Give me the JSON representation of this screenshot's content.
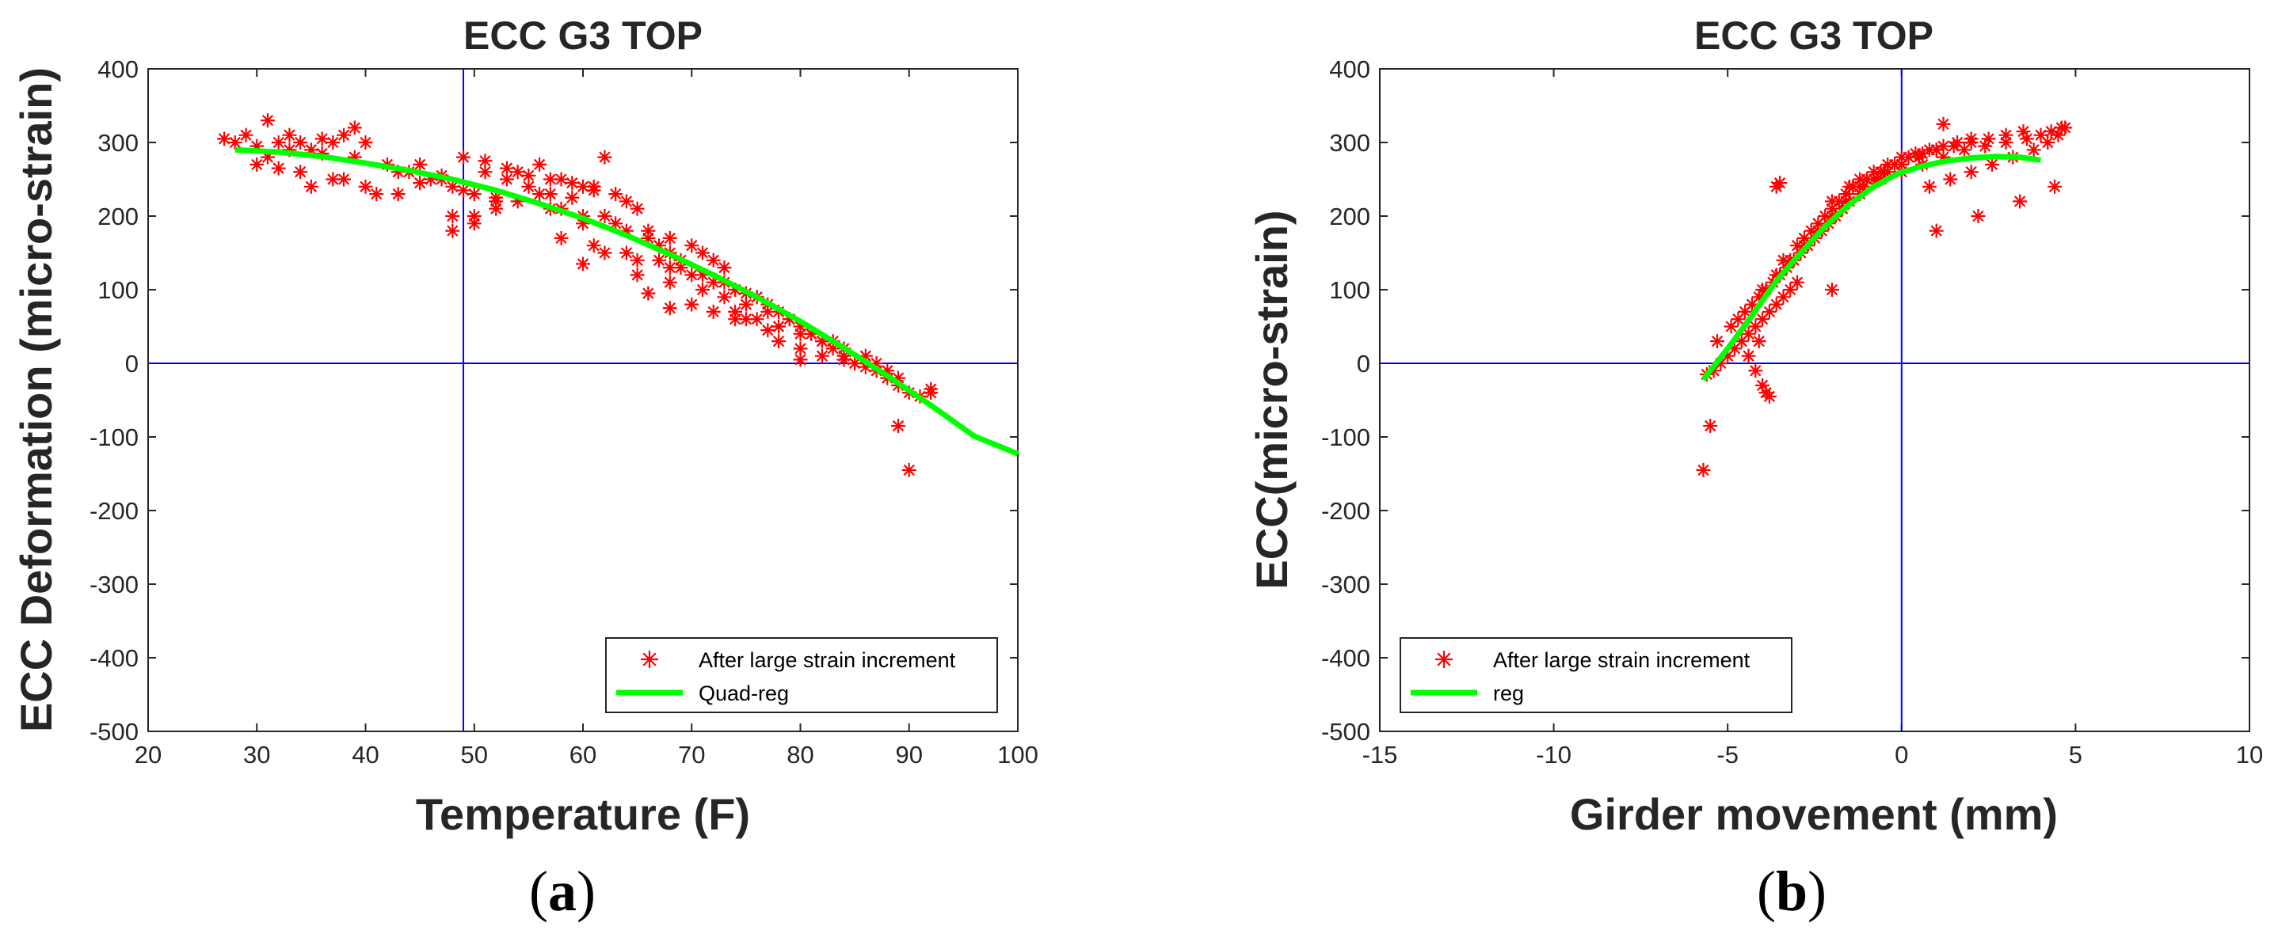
{
  "chart_data": [
    {
      "type": "scatter",
      "title": "ECC G3 TOP",
      "xlabel": "Temperature (F)",
      "ylabel": "ECC Deformation (micro-strain)",
      "xlim": [
        20,
        100
      ],
      "ylim": [
        -500,
        400
      ],
      "xticks": [
        "20",
        "30",
        "40",
        "50",
        "60",
        "70",
        "80",
        "90",
        "100"
      ],
      "yticks": [
        "-500",
        "-400",
        "-300",
        "-200",
        "-100",
        "0",
        "100",
        "200",
        "300",
        "400"
      ],
      "reference_lines": {
        "x": 49,
        "y": 0
      },
      "legend_position": "bottom-right",
      "series": [
        {
          "name": "After large strain increment",
          "marker": "asterisk",
          "color": "#ff0000",
          "x": [
            27,
            28,
            29,
            30,
            31,
            31,
            32,
            33,
            34,
            35,
            36,
            37,
            38,
            39,
            40,
            30,
            32,
            35,
            38,
            41,
            43,
            45,
            47,
            33,
            36,
            39,
            42,
            44,
            46,
            48,
            50,
            52,
            34,
            37,
            40,
            43,
            45,
            47,
            49,
            51,
            53,
            55,
            57,
            59,
            48,
            50,
            52,
            54,
            56,
            58,
            60,
            61,
            62,
            49,
            51,
            53,
            55,
            57,
            59,
            61,
            63,
            64,
            65,
            48,
            50,
            52,
            56,
            58,
            60,
            62,
            64,
            66,
            67,
            68,
            69,
            54,
            57,
            60,
            63,
            66,
            68,
            70,
            71,
            72,
            73,
            58,
            61,
            64,
            67,
            69,
            71,
            73,
            74,
            75,
            76,
            62,
            65,
            68,
            70,
            72,
            74,
            76,
            77,
            78,
            79,
            65,
            68,
            71,
            73,
            75,
            77,
            79,
            80,
            81,
            82,
            70,
            74,
            76,
            78,
            80,
            82,
            83,
            84,
            85,
            72,
            75,
            78,
            81,
            83,
            84,
            86,
            87,
            88,
            89,
            78,
            80,
            82,
            85,
            87,
            88,
            89,
            90,
            91,
            92,
            89,
            90,
            92,
            60,
            66,
            68,
            74,
            77,
            80,
            84,
            86
          ],
          "y": [
            305,
            300,
            310,
            295,
            330,
            280,
            300,
            310,
            300,
            290,
            305,
            300,
            310,
            320,
            300,
            270,
            265,
            240,
            250,
            230,
            260,
            270,
            250,
            290,
            285,
            280,
            270,
            260,
            250,
            240,
            230,
            225,
            260,
            250,
            240,
            230,
            245,
            255,
            235,
            260,
            250,
            240,
            230,
            225,
            200,
            190,
            210,
            260,
            270,
            250,
            240,
            235,
            280,
            280,
            275,
            265,
            255,
            250,
            245,
            240,
            230,
            220,
            210,
            180,
            200,
            220,
            230,
            210,
            190,
            200,
            180,
            170,
            160,
            150,
            140,
            220,
            210,
            200,
            190,
            180,
            170,
            160,
            150,
            140,
            130,
            170,
            160,
            150,
            140,
            130,
            120,
            110,
            100,
            95,
            90,
            150,
            140,
            130,
            120,
            110,
            100,
            90,
            80,
            70,
            60,
            120,
            110,
            100,
            90,
            80,
            70,
            60,
            50,
            40,
            30,
            80,
            70,
            60,
            50,
            40,
            30,
            20,
            10,
            0,
            70,
            60,
            50,
            40,
            30,
            20,
            10,
            0,
            -10,
            -20,
            30,
            20,
            10,
            0,
            -10,
            -20,
            -30,
            -40,
            -45,
            -35,
            -85,
            -145,
            -40,
            135,
            95,
            75,
            60,
            45,
            5,
            5,
            -5
          ]
        },
        {
          "name": "Quad-reg",
          "type": "line",
          "color": "#00ff00",
          "x": [
            28,
            32,
            36,
            40,
            44,
            48,
            52,
            56,
            60,
            64,
            68,
            72,
            76,
            80,
            84,
            88,
            92,
            96,
            100
          ],
          "y": [
            290,
            287,
            281,
            272,
            262,
            250,
            235,
            217,
            197,
            174,
            148,
            120,
            90,
            57,
            21,
            -17,
            -57,
            -99,
            -123
          ]
        }
      ]
    },
    {
      "type": "scatter",
      "title": "ECC G3 TOP",
      "xlabel": "Girder movement (mm)",
      "ylabel": "ECC(micro-strain)",
      "xlim": [
        -15,
        10
      ],
      "ylim": [
        -500,
        400
      ],
      "xticks": [
        "-15",
        "-10",
        "-5",
        "0",
        "5",
        "10"
      ],
      "yticks": [
        "-500",
        "-400",
        "-300",
        "-200",
        "-100",
        "0",
        "100",
        "200",
        "300",
        "400"
      ],
      "reference_lines": {
        "x": 0,
        "y": 0
      },
      "legend_position": "bottom-left",
      "series": [
        {
          "name": "After large strain increment",
          "marker": "asterisk",
          "color": "#ff0000",
          "x": [
            -5.6,
            -5.4,
            -5.2,
            -5.0,
            -4.8,
            -4.6,
            -4.4,
            -4.2,
            -4.0,
            -3.8,
            -3.6,
            -3.4,
            -3.2,
            -3.0,
            -5.3,
            -4.9,
            -4.5,
            -4.1,
            -3.7,
            -3.3,
            -2.9,
            -2.5,
            -2.1,
            -1.7,
            -4.7,
            -4.3,
            -3.9,
            -3.5,
            -3.1,
            -2.7,
            -2.3,
            -1.9,
            -1.5,
            -1.1,
            -0.7,
            -4.0,
            -3.6,
            -3.2,
            -2.8,
            -2.4,
            -2.0,
            -1.6,
            -1.2,
            -0.8,
            -0.4,
            0.0,
            -3.4,
            -3.0,
            -2.6,
            -2.2,
            -1.8,
            -1.4,
            -1.0,
            -0.6,
            -0.2,
            0.2,
            0.6,
            1.0,
            -2.8,
            -2.4,
            -2.0,
            -1.6,
            -1.2,
            -0.8,
            -0.4,
            0.0,
            0.4,
            0.8,
            1.2,
            1.6,
            2.0,
            -2.0,
            -1.5,
            -1.0,
            -0.5,
            0.0,
            0.5,
            1.0,
            1.5,
            2.0,
            2.5,
            3.0,
            3.5,
            -1.2,
            -0.6,
            0.0,
            0.6,
            1.2,
            1.8,
            2.4,
            3.0,
            3.6,
            4.0,
            4.3,
            4.6,
            0.8,
            1.4,
            2.0,
            2.6,
            3.2,
            3.8,
            4.2,
            4.5,
            4.7,
            1.0,
            2.2,
            3.4,
            4.4,
            -4.2,
            -4.0,
            -3.9,
            -3.8,
            -4.4,
            -4.1,
            -5.5,
            -5.7,
            -3.5,
            -3.6,
            -2.0,
            1.2
          ],
          "y": [
            -15,
            -10,
            0,
            10,
            20,
            30,
            40,
            50,
            60,
            70,
            80,
            90,
            100,
            110,
            30,
            50,
            70,
            90,
            110,
            130,
            150,
            170,
            190,
            210,
            60,
            80,
            100,
            120,
            140,
            160,
            180,
            200,
            220,
            240,
            250,
            100,
            120,
            140,
            160,
            180,
            200,
            220,
            240,
            250,
            260,
            270,
            140,
            160,
            180,
            200,
            220,
            240,
            250,
            260,
            270,
            280,
            285,
            290,
            170,
            190,
            210,
            230,
            250,
            260,
            270,
            280,
            285,
            290,
            295,
            300,
            305,
            220,
            240,
            250,
            260,
            270,
            280,
            290,
            295,
            300,
            305,
            310,
            315,
            230,
            250,
            260,
            270,
            280,
            290,
            295,
            300,
            305,
            310,
            315,
            320,
            240,
            250,
            260,
            270,
            280,
            290,
            300,
            310,
            320,
            180,
            200,
            220,
            240,
            -10,
            -30,
            -40,
            -45,
            10,
            30,
            -85,
            -145,
            245,
            240,
            100,
            325
          ]
        },
        {
          "name": "reg",
          "type": "line",
          "color": "#00ff00",
          "x": [
            -5.7,
            -5.0,
            -4.3,
            -3.6,
            -2.9,
            -2.2,
            -1.5,
            -0.8,
            -0.1,
            0.6,
            1.3,
            2.0,
            2.7,
            3.4,
            4.0
          ],
          "y": [
            -22,
            20,
            65,
            112,
            150,
            186,
            216,
            240,
            258,
            268,
            275,
            279,
            281,
            280,
            276
          ]
        }
      ]
    }
  ],
  "panel_labels": {
    "a": "(a)",
    "b": "(b)"
  }
}
